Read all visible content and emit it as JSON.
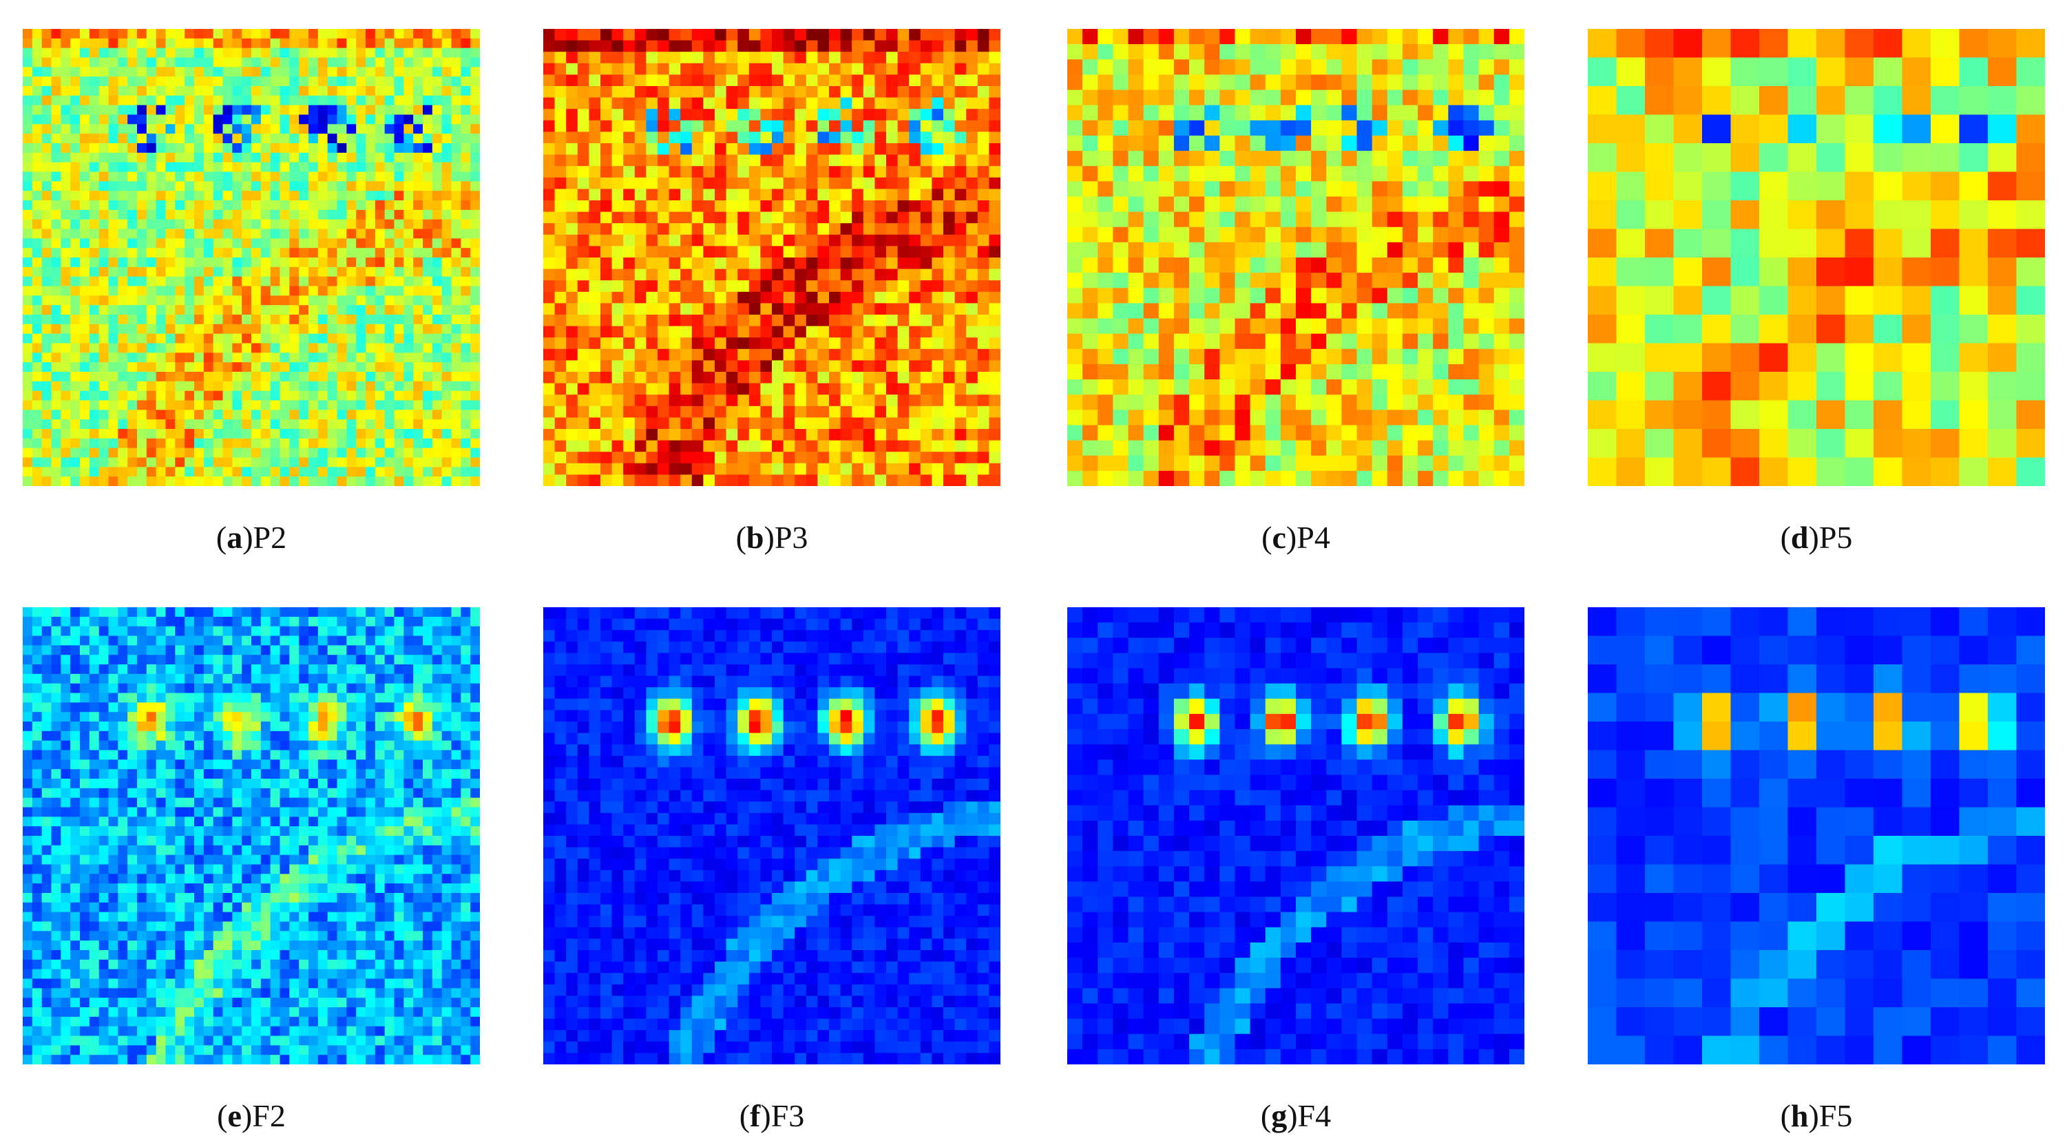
{
  "panels": [
    {
      "caption": [
        "(",
        "a",
        ")P2"
      ]
    },
    {
      "caption": [
        "(",
        "b",
        ")P3"
      ]
    },
    {
      "caption": [
        "(",
        "c",
        ")P4"
      ]
    },
    {
      "caption": [
        "(",
        "d",
        ")P5"
      ]
    },
    {
      "caption": [
        "(",
        "e",
        ")F2"
      ]
    },
    {
      "caption": [
        "(",
        "f",
        ")F3"
      ]
    },
    {
      "caption": [
        "(",
        "g",
        ")F4"
      ]
    },
    {
      "caption": [
        "(",
        "h",
        ")F5"
      ]
    }
  ]
}
